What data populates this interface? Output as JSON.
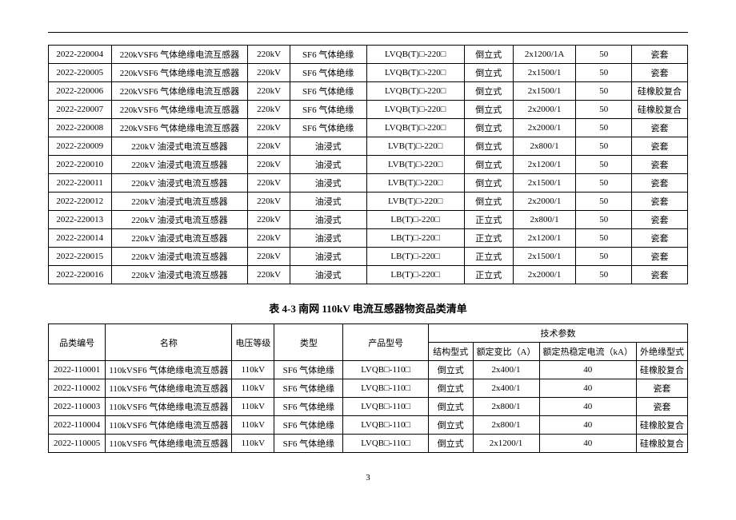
{
  "table1": {
    "rows": [
      [
        "2022-220004",
        "220kVSF6 气体绝缘电流互感器",
        "220kV",
        "SF6 气体绝缘",
        "LVQB(T)□-220□",
        "倒立式",
        "2x1200/1A",
        "50",
        "瓷套"
      ],
      [
        "2022-220005",
        "220kVSF6 气体绝缘电流互感器",
        "220kV",
        "SF6 气体绝缘",
        "LVQB(T)□-220□",
        "倒立式",
        "2x1500/1",
        "50",
        "瓷套"
      ],
      [
        "2022-220006",
        "220kVSF6 气体绝缘电流互感器",
        "220kV",
        "SF6 气体绝缘",
        "LVQB(T)□-220□",
        "倒立式",
        "2x1500/1",
        "50",
        "硅橡胶复合"
      ],
      [
        "2022-220007",
        "220kVSF6 气体绝缘电流互感器",
        "220kV",
        "SF6 气体绝缘",
        "LVQB(T)□-220□",
        "倒立式",
        "2x2000/1",
        "50",
        "硅橡胶复合"
      ],
      [
        "2022-220008",
        "220kVSF6 气体绝缘电流互感器",
        "220kV",
        "SF6 气体绝缘",
        "LVQB(T)□-220□",
        "倒立式",
        "2x2000/1",
        "50",
        "瓷套"
      ],
      [
        "2022-220009",
        "220kV 油浸式电流互感器",
        "220kV",
        "油浸式",
        "LVB(T)□-220□",
        "倒立式",
        "2x800/1",
        "50",
        "瓷套"
      ],
      [
        "2022-220010",
        "220kV 油浸式电流互感器",
        "220kV",
        "油浸式",
        "LVB(T)□-220□",
        "倒立式",
        "2x1200/1",
        "50",
        "瓷套"
      ],
      [
        "2022-220011",
        "220kV 油浸式电流互感器",
        "220kV",
        "油浸式",
        "LVB(T)□-220□",
        "倒立式",
        "2x1500/1",
        "50",
        "瓷套"
      ],
      [
        "2022-220012",
        "220kV 油浸式电流互感器",
        "220kV",
        "油浸式",
        "LVB(T)□-220□",
        "倒立式",
        "2x2000/1",
        "50",
        "瓷套"
      ],
      [
        "2022-220013",
        "220kV 油浸式电流互感器",
        "220kV",
        "油浸式",
        "LB(T)□-220□",
        "正立式",
        "2x800/1",
        "50",
        "瓷套"
      ],
      [
        "2022-220014",
        "220kV 油浸式电流互感器",
        "220kV",
        "油浸式",
        "LB(T)□-220□",
        "正立式",
        "2x1200/1",
        "50",
        "瓷套"
      ],
      [
        "2022-220015",
        "220kV 油浸式电流互感器",
        "220kV",
        "油浸式",
        "LB(T)□-220□",
        "正立式",
        "2x1500/1",
        "50",
        "瓷套"
      ],
      [
        "2022-220016",
        "220kV 油浸式电流互感器",
        "220kV",
        "油浸式",
        "LB(T)□-220□",
        "正立式",
        "2x2000/1",
        "50",
        "瓷套"
      ]
    ]
  },
  "table2": {
    "title": "表 4-3  南网 110kV 电流互感器物资品类清单",
    "headers": {
      "code": "品类编号",
      "name": "名称",
      "volt": "电压等级",
      "type": "类型",
      "model": "产品型号",
      "tech": "技术参数",
      "struct": "结构型式",
      "ratio": "额定变比（A）",
      "current": "额定热稳定电流（kA）",
      "insul": "外绝缘型式"
    },
    "rows": [
      [
        "2022-110001",
        "110kVSF6 气体绝缘电流互感器",
        "110kV",
        "SF6 气体绝缘",
        "LVQB□-110□",
        "倒立式",
        "2x400/1",
        "40",
        "硅橡胶复合"
      ],
      [
        "2022-110002",
        "110kVSF6 气体绝缘电流互感器",
        "110kV",
        "SF6 气体绝缘",
        "LVQB□-110□",
        "倒立式",
        "2x400/1",
        "40",
        "瓷套"
      ],
      [
        "2022-110003",
        "110kVSF6 气体绝缘电流互感器",
        "110kV",
        "SF6 气体绝缘",
        "LVQB□-110□",
        "倒立式",
        "2x800/1",
        "40",
        "瓷套"
      ],
      [
        "2022-110004",
        "110kVSF6 气体绝缘电流互感器",
        "110kV",
        "SF6 气体绝缘",
        "LVQB□-110□",
        "倒立式",
        "2x800/1",
        "40",
        "硅橡胶复合"
      ],
      [
        "2022-110005",
        "110kVSF6 气体绝缘电流互感器",
        "110kV",
        "SF6 气体绝缘",
        "LVQB□-110□",
        "倒立式",
        "2x1200/1",
        "40",
        "硅橡胶复合"
      ]
    ]
  },
  "page_number": "3"
}
